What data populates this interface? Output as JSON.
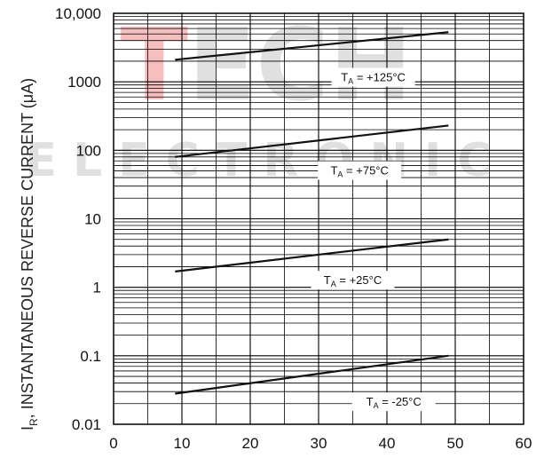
{
  "watermark": {
    "line1": "TECH",
    "line2": "ELECTRONIC",
    "color": "#c8c8c8",
    "accent": "#f08a8a"
  },
  "chart_data": {
    "type": "line",
    "ylabel_main": "I",
    "ylabel_sub": "R",
    "ylabel_rest": ", INSTANTANEOUS REVERSE CURRENT (μA)",
    "xlabel": "",
    "title": "",
    "y_scale": "log",
    "xlim": [
      0,
      60
    ],
    "ylim": [
      0.01,
      10000
    ],
    "x_ticks": [
      "0",
      "10",
      "20",
      "30",
      "40",
      "50",
      "60"
    ],
    "y_ticks": [
      "0.01",
      "0.1",
      "1",
      "10",
      "100",
      "1000",
      "10,000"
    ],
    "grid": true,
    "series": [
      {
        "ta": "+125°C",
        "label_pre": "T",
        "label_sub": "A",
        "label_post": " = +125°C",
        "x": [
          9,
          49
        ],
        "y": [
          2100,
          5300
        ],
        "label_at": [
          38,
          1150
        ]
      },
      {
        "ta": "+75°C",
        "label_pre": "T",
        "label_sub": "A",
        "label_post": " = +75°C",
        "x": [
          9,
          49
        ],
        "y": [
          80,
          230
        ],
        "label_at": [
          36,
          50
        ]
      },
      {
        "ta": "+25°C",
        "label_pre": "T",
        "label_sub": "A",
        "label_post": " = +25°C",
        "x": [
          9,
          49
        ],
        "y": [
          1.7,
          5
        ],
        "label_at": [
          35,
          1.25
        ]
      },
      {
        "ta": "-25°C",
        "label_pre": "T",
        "label_sub": "A",
        "label_post": " = -25°C",
        "x": [
          9,
          49
        ],
        "y": [
          0.028,
          0.1
        ],
        "label_at": [
          41,
          0.021
        ]
      }
    ]
  }
}
